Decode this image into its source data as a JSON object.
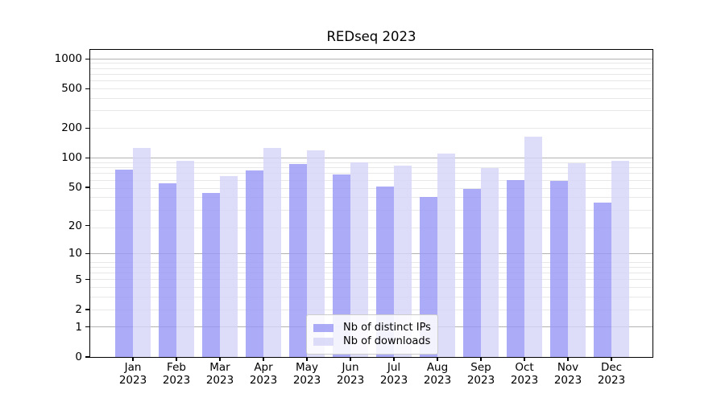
{
  "chart_data": {
    "type": "bar",
    "title": "REDseq 2023",
    "categories": [
      "Jan 2023",
      "Feb 2023",
      "Mar 2023",
      "Apr 2023",
      "May 2023",
      "Jun 2023",
      "Jul 2023",
      "Aug 2023",
      "Sep 2023",
      "Oct 2023",
      "Nov 2023",
      "Dec 2023"
    ],
    "x_axis": {
      "months": [
        "Jan",
        "Feb",
        "Mar",
        "Apr",
        "May",
        "Jun",
        "Jul",
        "Aug",
        "Sep",
        "Oct",
        "Nov",
        "Dec"
      ],
      "year_line": "2023"
    },
    "series": [
      {
        "name": "Nb of distinct IPs",
        "color": "rgba(150,150,245,0.8)",
        "color_hex": "#a9a9f6",
        "values": [
          76,
          55,
          44,
          75,
          87,
          68,
          51,
          40,
          48,
          59,
          58,
          35
        ]
      },
      {
        "name": "Nb of downloads",
        "color": "rgba(212,212,248,0.8)",
        "color_hex": "#dcdcf8",
        "values": [
          126,
          94,
          65,
          125,
          120,
          89,
          83,
          110,
          78,
          163,
          88,
          94
        ]
      }
    ],
    "y_axis": {
      "scale": "log1p",
      "ticks": [
        0,
        1,
        2,
        5,
        10,
        20,
        50,
        100,
        200,
        500,
        1000
      ],
      "ylim": [
        0,
        1230
      ]
    },
    "grid": true,
    "legend_position": "lower center",
    "grid_major_color": "#b3b3b3",
    "grid_minor_color": "#e8e8e8"
  }
}
